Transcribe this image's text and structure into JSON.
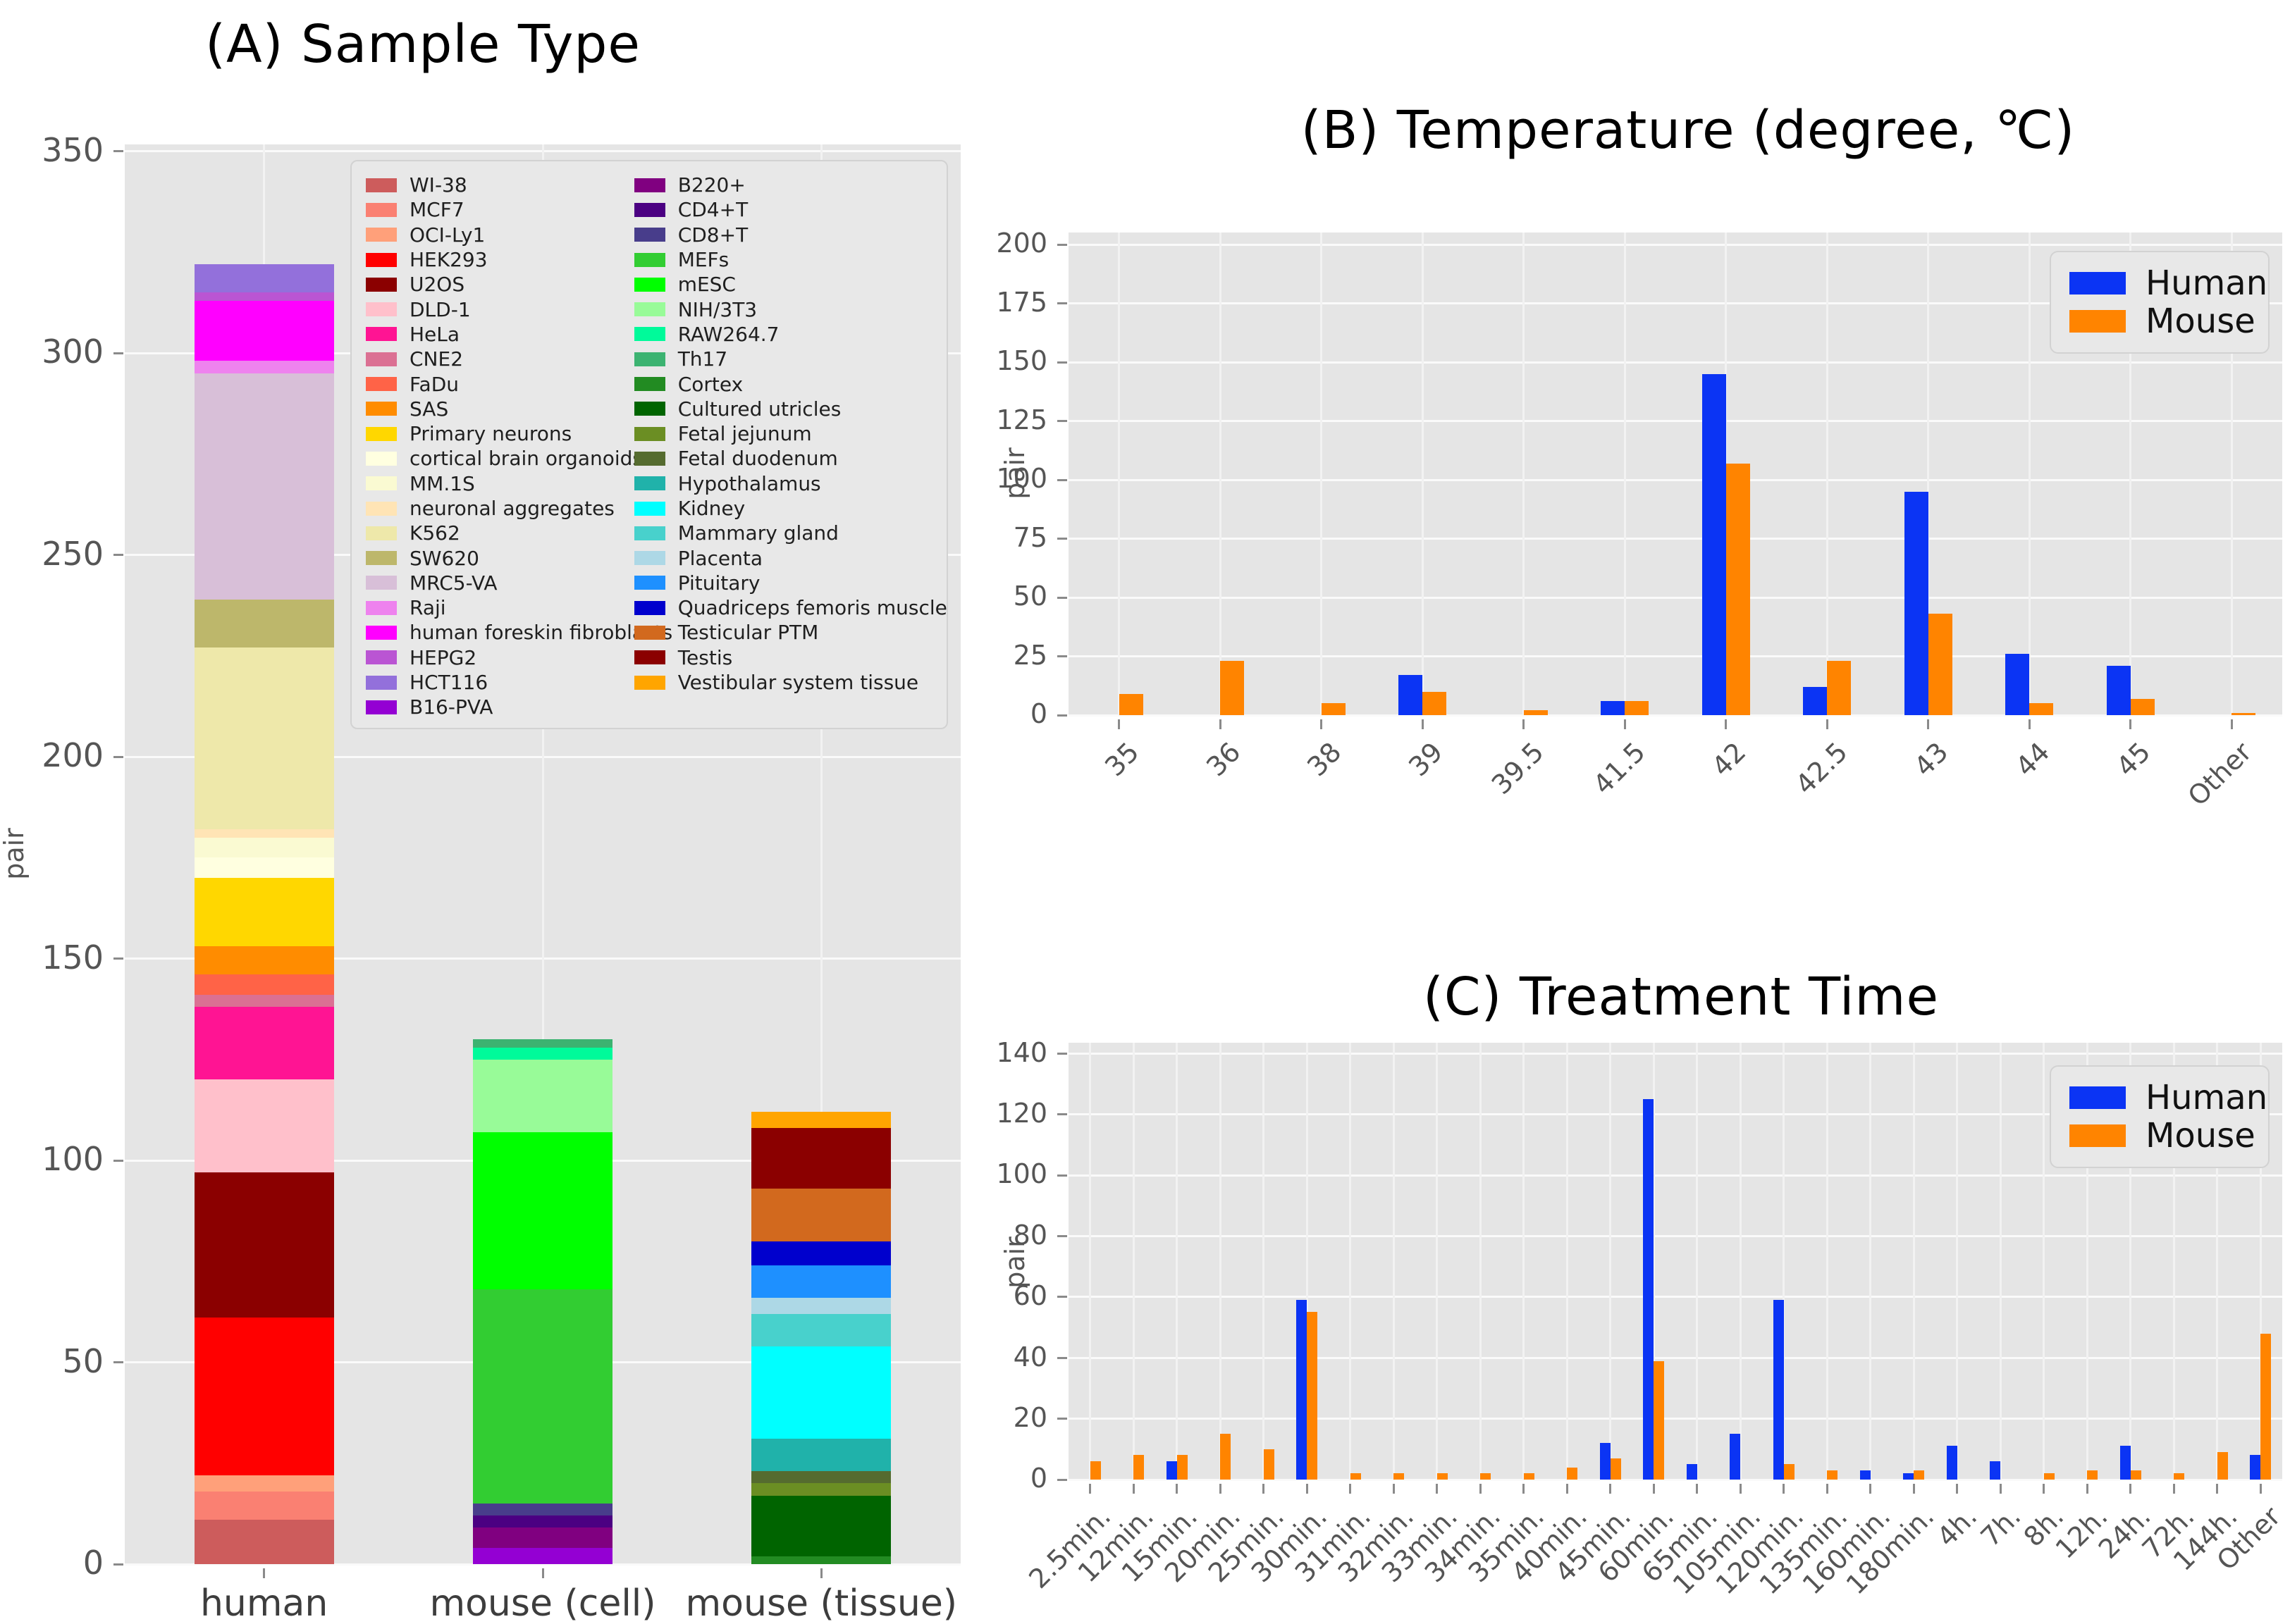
{
  "figure": {
    "background": "#ffffff",
    "plot_background": "#e5e5e5",
    "gridline_color": "#fafafa",
    "tick_label_color": "#555555"
  },
  "chart_data": [
    {
      "id": "A",
      "type": "bar",
      "stacked": true,
      "title": "(A) Sample Type",
      "ylabel": "pair",
      "categories": [
        "human",
        "mouse (cell)",
        "mouse (tissue)"
      ],
      "ylim": [
        0,
        350
      ],
      "yticks": [
        0,
        50,
        100,
        150,
        200,
        250,
        300,
        350
      ],
      "grid": true,
      "legend_position": "upper right, two columns",
      "series": [
        {
          "label": "WI-38",
          "color": "#CD5C5C",
          "values": [
            11,
            0,
            0
          ]
        },
        {
          "label": "MCF7",
          "color": "#FA8072",
          "values": [
            7,
            0,
            0
          ]
        },
        {
          "label": "OCI-Ly1",
          "color": "#FFA07A",
          "values": [
            4,
            0,
            0
          ]
        },
        {
          "label": "HEK293",
          "color": "#FF0000",
          "values": [
            39,
            0,
            0
          ]
        },
        {
          "label": "U2OS",
          "color": "#8B0000",
          "values": [
            36,
            0,
            0
          ]
        },
        {
          "label": "DLD-1",
          "color": "#FFC0CB",
          "values": [
            23,
            0,
            0
          ]
        },
        {
          "label": "HeLa",
          "color": "#FF1493",
          "values": [
            18,
            0,
            0
          ]
        },
        {
          "label": "CNE2",
          "color": "#DB7093",
          "values": [
            3,
            0,
            0
          ]
        },
        {
          "label": "FaDu",
          "color": "#FF6347",
          "values": [
            5,
            0,
            0
          ]
        },
        {
          "label": "SAS",
          "color": "#FF8C00",
          "values": [
            7,
            0,
            0
          ]
        },
        {
          "label": "Primary neurons",
          "color": "#FFD700",
          "values": [
            17,
            0,
            0
          ]
        },
        {
          "label": "cortical brain organoids",
          "color": "#FFFFE0",
          "values": [
            5,
            0,
            0
          ]
        },
        {
          "label": "MM.1S",
          "color": "#FAFAD2",
          "values": [
            5,
            0,
            0
          ]
        },
        {
          "label": "neuronal aggregates",
          "color": "#FFE4B5",
          "values": [
            2,
            0,
            0
          ]
        },
        {
          "label": "K562",
          "color": "#EEE8AA",
          "values": [
            45,
            0,
            0
          ]
        },
        {
          "label": "SW620",
          "color": "#BDB76B",
          "values": [
            12,
            0,
            0
          ]
        },
        {
          "label": "MRC5-VA",
          "color": "#D8BFD8",
          "values": [
            56,
            0,
            0
          ]
        },
        {
          "label": "Raji",
          "color": "#EE82EE",
          "values": [
            3,
            0,
            0
          ]
        },
        {
          "label": "human foreskin fibroblasts",
          "color": "#FF00FF",
          "values": [
            15,
            0,
            0
          ]
        },
        {
          "label": "HEPG2",
          "color": "#BA55D3",
          "values": [
            2,
            0,
            0
          ]
        },
        {
          "label": "HCT116",
          "color": "#9370DB",
          "values": [
            7,
            0,
            0
          ]
        },
        {
          "label": "B16-PVA",
          "color": "#9400D3",
          "values": [
            0,
            4,
            0
          ]
        },
        {
          "label": "B220+",
          "color": "#800080",
          "values": [
            0,
            5,
            0
          ]
        },
        {
          "label": "CD4+T",
          "color": "#4B0082",
          "values": [
            0,
            3,
            0
          ]
        },
        {
          "label": "CD8+T",
          "color": "#483D8B",
          "values": [
            0,
            3,
            0
          ]
        },
        {
          "label": "MEFs",
          "color": "#32CD32",
          "values": [
            0,
            53,
            0
          ]
        },
        {
          "label": "mESC",
          "color": "#00FF00",
          "values": [
            0,
            39,
            0
          ]
        },
        {
          "label": "NIH/3T3",
          "color": "#98FB98",
          "values": [
            0,
            18,
            0
          ]
        },
        {
          "label": "RAW264.7",
          "color": "#00FA9A",
          "values": [
            0,
            3,
            0
          ]
        },
        {
          "label": "Th17",
          "color": "#3CB371",
          "values": [
            0,
            2,
            0
          ]
        },
        {
          "label": "Cortex",
          "color": "#228B22",
          "values": [
            0,
            0,
            2
          ]
        },
        {
          "label": "Cultured utricles",
          "color": "#006400",
          "values": [
            0,
            0,
            15
          ]
        },
        {
          "label": "Fetal jejunum",
          "color": "#6B8E23",
          "values": [
            0,
            0,
            3
          ]
        },
        {
          "label": "Fetal duodenum",
          "color": "#556B2F",
          "values": [
            0,
            0,
            3
          ]
        },
        {
          "label": "Hypothalamus",
          "color": "#20B2AA",
          "values": [
            0,
            0,
            8
          ]
        },
        {
          "label": "Kidney",
          "color": "#00FFFF",
          "values": [
            0,
            0,
            23
          ]
        },
        {
          "label": "Mammary gland",
          "color": "#48D1CC",
          "values": [
            0,
            0,
            8
          ]
        },
        {
          "label": "Placenta",
          "color": "#ADD8E6",
          "values": [
            0,
            0,
            4
          ]
        },
        {
          "label": "Pituitary",
          "color": "#1E90FF",
          "values": [
            0,
            0,
            8
          ]
        },
        {
          "label": "Quadriceps femoris muscle",
          "color": "#0000CD",
          "values": [
            0,
            0,
            6
          ]
        },
        {
          "label": "Testicular PTM",
          "color": "#D2691E",
          "values": [
            0,
            0,
            13
          ]
        },
        {
          "label": "Testis",
          "color": "#8B0000",
          "values": [
            0,
            0,
            15
          ]
        },
        {
          "label": "Vestibular system tissue",
          "color": "#FFA500",
          "values": [
            0,
            0,
            4
          ]
        }
      ]
    },
    {
      "id": "B",
      "type": "bar",
      "stacked": false,
      "title": "(B) Temperature (degree, ℃)",
      "ylabel": "pair",
      "categories": [
        "35",
        "36",
        "38",
        "39",
        "39.5",
        "41.5",
        "42",
        "42.5",
        "43",
        "44",
        "45",
        "Other"
      ],
      "ylim": [
        0,
        200
      ],
      "yticks": [
        0,
        25,
        50,
        75,
        100,
        125,
        150,
        175,
        200
      ],
      "grid": true,
      "legend_position": "upper right",
      "series": [
        {
          "name": "Human",
          "color": "#0B34F4",
          "values": [
            0,
            0,
            0,
            17,
            0,
            6,
            145,
            12,
            95,
            26,
            21,
            0
          ]
        },
        {
          "name": "Mouse",
          "color": "#FF8400",
          "values": [
            9,
            23,
            5,
            10,
            2,
            6,
            107,
            23,
            43,
            5,
            7,
            1
          ]
        }
      ]
    },
    {
      "id": "C",
      "type": "bar",
      "stacked": false,
      "title": "(C) Treatment Time",
      "ylabel": "pair",
      "categories": [
        "2.5min.",
        "12min.",
        "15min.",
        "20min.",
        "25min.",
        "30min.",
        "31min.",
        "32min.",
        "33min.",
        "34min.",
        "35min.",
        "40min.",
        "45min.",
        "60min.",
        "65min.",
        "105min.",
        "120min.",
        "135min.",
        "160min.",
        "180min.",
        "4h.",
        "7h.",
        "8h.",
        "12h.",
        "24h.",
        "72h.",
        "144h.",
        "Other"
      ],
      "ylim": [
        0,
        140
      ],
      "yticks": [
        0,
        20,
        40,
        60,
        80,
        100,
        120,
        140
      ],
      "grid": true,
      "legend_position": "upper right",
      "series": [
        {
          "name": "Human",
          "color": "#0B34F4",
          "values": [
            0,
            0,
            6,
            0,
            0,
            59,
            0,
            0,
            0,
            0,
            0,
            0,
            12,
            125,
            5,
            15,
            59,
            0,
            3,
            2,
            11,
            6,
            0,
            0,
            11,
            0,
            0,
            8
          ]
        },
        {
          "name": "Mouse",
          "color": "#FF8400",
          "values": [
            6,
            8,
            8,
            15,
            10,
            55,
            2,
            2,
            2,
            2,
            2,
            4,
            7,
            39,
            0,
            0,
            5,
            3,
            0,
            3,
            0,
            0,
            2,
            3,
            3,
            2,
            9,
            48
          ]
        }
      ]
    }
  ],
  "legend_human_mouse": [
    "Human",
    "Mouse"
  ]
}
